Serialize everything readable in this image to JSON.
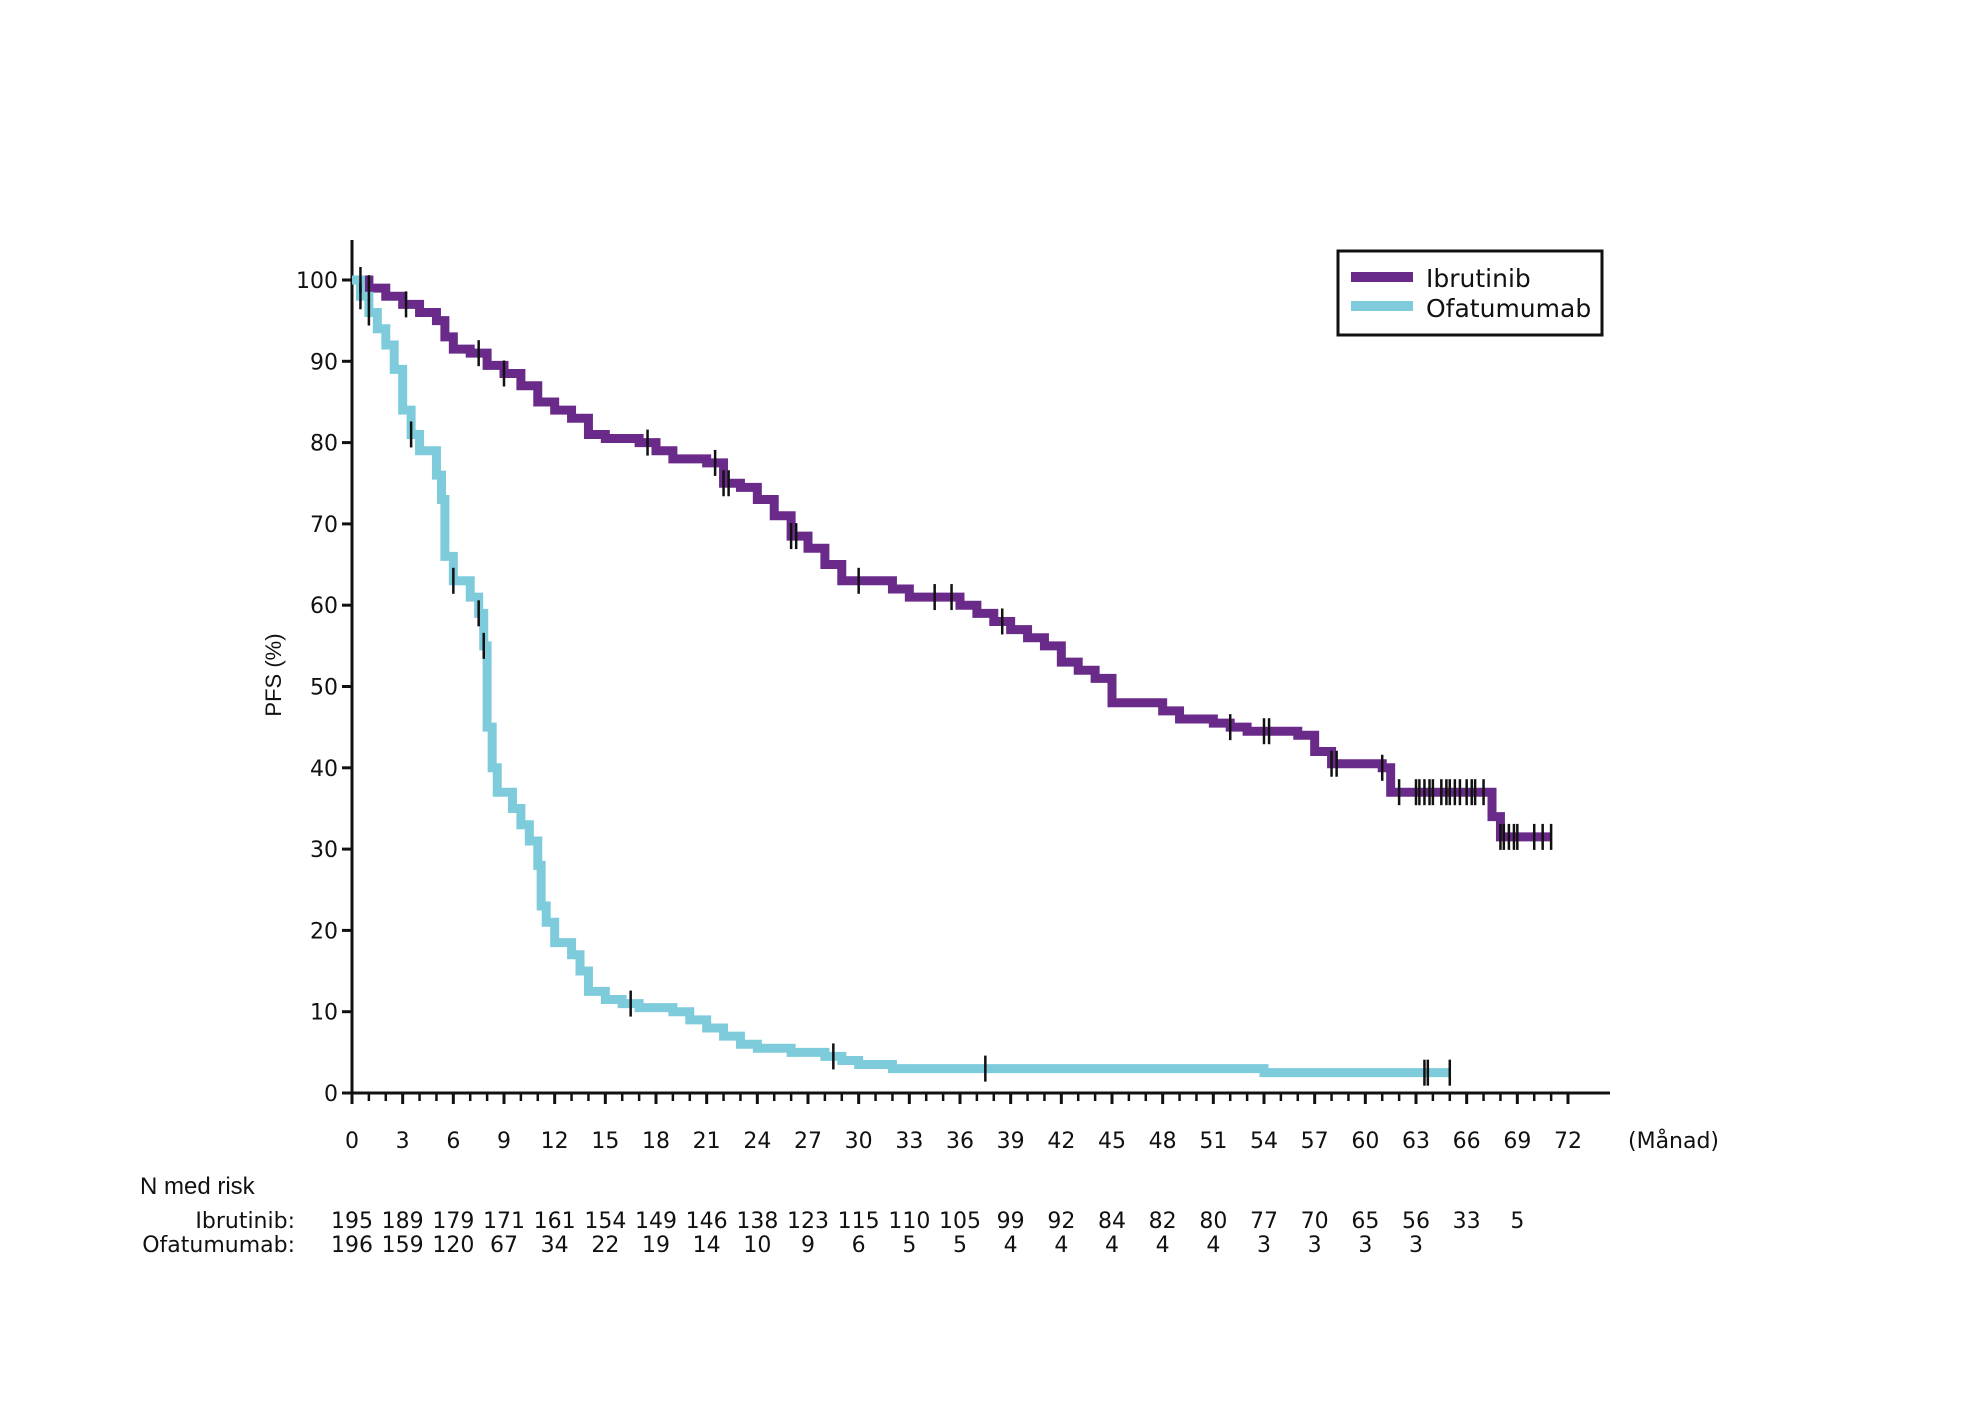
{
  "chart_data": {
    "type": "line",
    "subtype": "kaplan-meier",
    "title": "",
    "xlabel": "(Månad)",
    "ylabel": "PFS (%)",
    "xlim": [
      0,
      72
    ],
    "ylim": [
      0,
      100
    ],
    "x_ticks": [
      0,
      3,
      6,
      9,
      12,
      15,
      18,
      21,
      24,
      27,
      30,
      33,
      36,
      39,
      42,
      45,
      48,
      51,
      54,
      57,
      60,
      63,
      66,
      69,
      72
    ],
    "y_ticks": [
      0,
      10,
      20,
      30,
      40,
      50,
      60,
      70,
      80,
      90,
      100
    ],
    "grid": false,
    "legend_position": "top-right",
    "series": [
      {
        "name": "Ibrutinib",
        "color": "#6a2a8a",
        "points": [
          [
            0,
            100
          ],
          [
            1,
            99
          ],
          [
            2,
            98
          ],
          [
            3,
            97
          ],
          [
            4,
            96
          ],
          [
            5,
            95
          ],
          [
            5.5,
            93
          ],
          [
            6,
            91.5
          ],
          [
            7,
            91
          ],
          [
            8,
            89.5
          ],
          [
            9,
            88.5
          ],
          [
            10,
            87
          ],
          [
            11,
            85
          ],
          [
            12,
            84
          ],
          [
            13,
            83
          ],
          [
            14,
            81
          ],
          [
            15,
            80.5
          ],
          [
            17,
            80
          ],
          [
            18,
            79
          ],
          [
            19,
            78
          ],
          [
            21,
            77.5
          ],
          [
            22,
            75
          ],
          [
            23,
            74.5
          ],
          [
            24,
            73
          ],
          [
            25,
            71
          ],
          [
            26,
            68.5
          ],
          [
            27,
            67
          ],
          [
            28,
            65
          ],
          [
            29,
            63
          ],
          [
            32,
            62
          ],
          [
            33,
            61
          ],
          [
            36,
            60
          ],
          [
            37,
            59
          ],
          [
            38,
            58
          ],
          [
            39,
            57
          ],
          [
            40,
            56
          ],
          [
            41,
            55
          ],
          [
            42,
            53
          ],
          [
            43,
            52
          ],
          [
            44,
            51
          ],
          [
            45,
            48
          ],
          [
            46,
            48
          ],
          [
            48,
            47
          ],
          [
            49,
            46
          ],
          [
            51,
            45.5
          ],
          [
            52,
            45
          ],
          [
            53,
            44.5
          ],
          [
            56,
            44
          ],
          [
            57,
            42
          ],
          [
            58,
            40.5
          ],
          [
            61,
            40
          ],
          [
            61.5,
            37
          ],
          [
            67,
            37
          ],
          [
            67.5,
            34
          ],
          [
            68,
            31.5
          ],
          [
            71,
            31.5
          ]
        ],
        "censor_marks": [
          0.5,
          1,
          3.2,
          7.5,
          9,
          17.5,
          21.5,
          22,
          22.3,
          26,
          26.3,
          30,
          34.5,
          35.5,
          38.5,
          52,
          54,
          54.3,
          58,
          58.3,
          61,
          62,
          63,
          63.2,
          63.5,
          63.8,
          64,
          64.5,
          64.8,
          65,
          65.3,
          65.6,
          66,
          66.3,
          66.5,
          67,
          68,
          68.2,
          68.5,
          68.8,
          69,
          70,
          70.5,
          71
        ]
      },
      {
        "name": "Ofatumumab",
        "color": "#7ecbdc",
        "points": [
          [
            0,
            100
          ],
          [
            0.5,
            98
          ],
          [
            1,
            96
          ],
          [
            1.5,
            94
          ],
          [
            2,
            92
          ],
          [
            2.5,
            89
          ],
          [
            3,
            84
          ],
          [
            3.5,
            81
          ],
          [
            4,
            79
          ],
          [
            5,
            76
          ],
          [
            5.3,
            73
          ],
          [
            5.5,
            66
          ],
          [
            6,
            63
          ],
          [
            7,
            61
          ],
          [
            7.5,
            59
          ],
          [
            7.8,
            55
          ],
          [
            8,
            45
          ],
          [
            8.3,
            40
          ],
          [
            8.6,
            37
          ],
          [
            9.5,
            35
          ],
          [
            10,
            33
          ],
          [
            10.5,
            31
          ],
          [
            11,
            28
          ],
          [
            11.2,
            23
          ],
          [
            11.5,
            21
          ],
          [
            12,
            18.5
          ],
          [
            13,
            17
          ],
          [
            13.5,
            15
          ],
          [
            14,
            12.5
          ],
          [
            15,
            11.5
          ],
          [
            16,
            11
          ],
          [
            17,
            10.5
          ],
          [
            19,
            10
          ],
          [
            20,
            9
          ],
          [
            21,
            8
          ],
          [
            22,
            7
          ],
          [
            23,
            6
          ],
          [
            24,
            5.5
          ],
          [
            26,
            5
          ],
          [
            28,
            4.5
          ],
          [
            29,
            4
          ],
          [
            30,
            3.5
          ],
          [
            32,
            3
          ],
          [
            53,
            3
          ],
          [
            54,
            2.5
          ],
          [
            65,
            2.5
          ]
        ],
        "censor_marks": [
          0.5,
          1,
          3.5,
          6,
          7.5,
          7.8,
          16.5,
          28.5,
          37.5,
          63.5,
          63.7,
          65
        ]
      }
    ],
    "risk_table": {
      "heading": "N med risk",
      "rows": [
        {
          "label": "Ibrutinib:",
          "values": [
            "195",
            "189",
            "179",
            "171",
            "161",
            "154",
            "149",
            "146",
            "138",
            "123",
            "115",
            "110",
            "105",
            "99",
            "92",
            "84",
            "82",
            "80",
            "77",
            "70",
            "65",
            "56",
            "33",
            "5"
          ],
          "months": [
            0,
            3,
            6,
            9,
            12,
            15,
            18,
            21,
            24,
            27,
            30,
            33,
            36,
            39,
            42,
            45,
            48,
            51,
            54,
            57,
            60,
            63,
            66,
            69
          ]
        },
        {
          "label": "Ofatumumab:",
          "values": [
            "196",
            "159",
            "120",
            "67",
            "34",
            "22",
            "19",
            "14",
            "10",
            "9",
            "6",
            "5",
            "5",
            "4",
            "4",
            "4",
            "4",
            "4",
            "3",
            "3",
            "3",
            "3"
          ],
          "months": [
            0,
            3,
            6,
            9,
            12,
            15,
            18,
            21,
            24,
            27,
            30,
            33,
            36,
            39,
            42,
            45,
            48,
            51,
            54,
            57,
            60,
            63
          ]
        }
      ]
    }
  }
}
